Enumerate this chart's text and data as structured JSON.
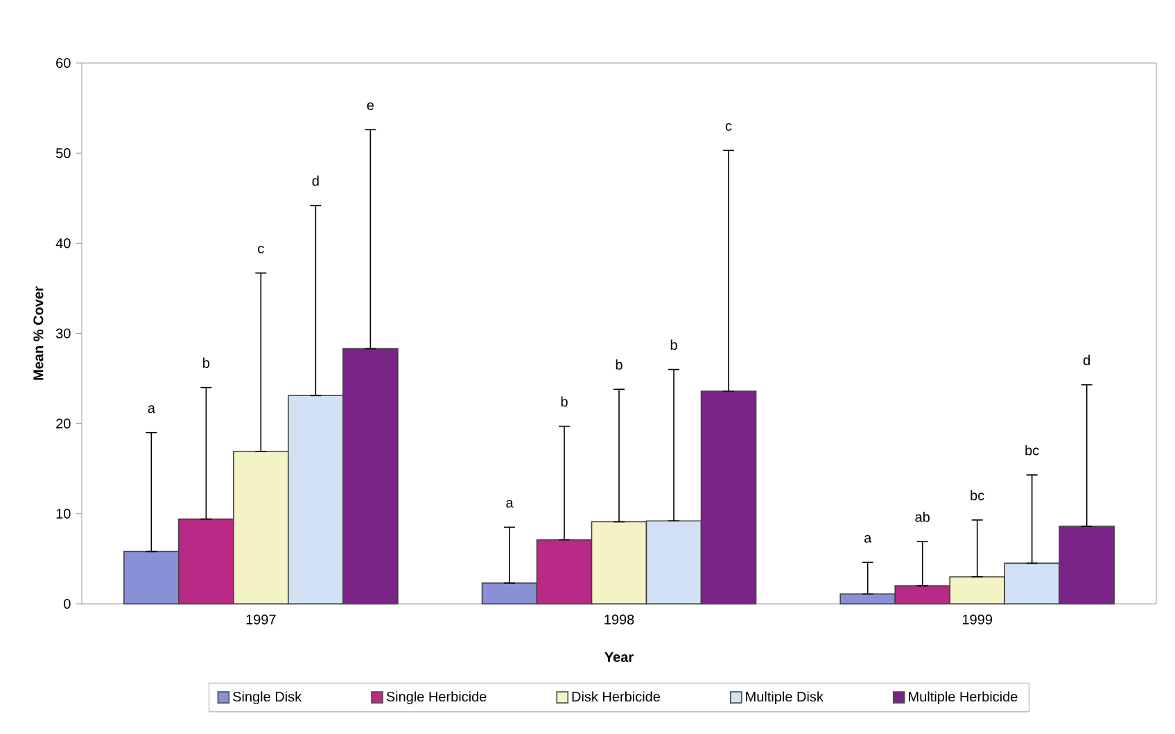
{
  "chart_data": {
    "type": "bar",
    "xlabel": "Year",
    "ylabel": "Mean % Cover",
    "categories": [
      "1997",
      "1998",
      "1999"
    ],
    "annotations": [
      "a",
      "b",
      "c",
      "d",
      "e",
      "a",
      "b",
      "b",
      "b",
      "c",
      "a",
      "ab",
      "bc",
      "bc",
      "d"
    ],
    "ylim": [
      0,
      60
    ],
    "yticks": [
      0,
      10,
      20,
      30,
      40,
      50,
      60
    ],
    "grid": false,
    "legend": "bottom",
    "series": [
      {
        "name": "Single Disk",
        "color": "#8a90d8",
        "values": [
          5.8,
          2.3,
          1.1
        ],
        "errors": [
          [
            5.8,
            19.0
          ],
          [
            2.3,
            8.5
          ],
          [
            1.1,
            4.6
          ]
        ]
      },
      {
        "name": "Single Herbicide",
        "color": "#b82a86",
        "values": [
          9.4,
          7.1,
          2.0
        ],
        "errors": [
          [
            9.4,
            24.0
          ],
          [
            7.1,
            19.7
          ],
          [
            2.0,
            6.9
          ]
        ]
      },
      {
        "name": "Disk Herbicide",
        "color": "#f3f3c6",
        "values": [
          16.9,
          9.1,
          3.0
        ],
        "errors": [
          [
            16.9,
            36.7
          ],
          [
            9.1,
            23.8
          ],
          [
            3.0,
            9.3
          ]
        ]
      },
      {
        "name": "Multiple Disk",
        "color": "#d2e2f4",
        "values": [
          23.1,
          9.2,
          4.5
        ],
        "errors": [
          [
            23.1,
            44.2
          ],
          [
            9.2,
            26.0
          ],
          [
            4.5,
            14.3
          ]
        ]
      },
      {
        "name": "Multiple Herbicide",
        "color": "#7a2488",
        "values": [
          28.3,
          23.6,
          8.6
        ],
        "errors": [
          [
            28.3,
            52.6
          ],
          [
            23.6,
            50.3
          ],
          [
            8.6,
            24.3
          ]
        ]
      }
    ]
  }
}
